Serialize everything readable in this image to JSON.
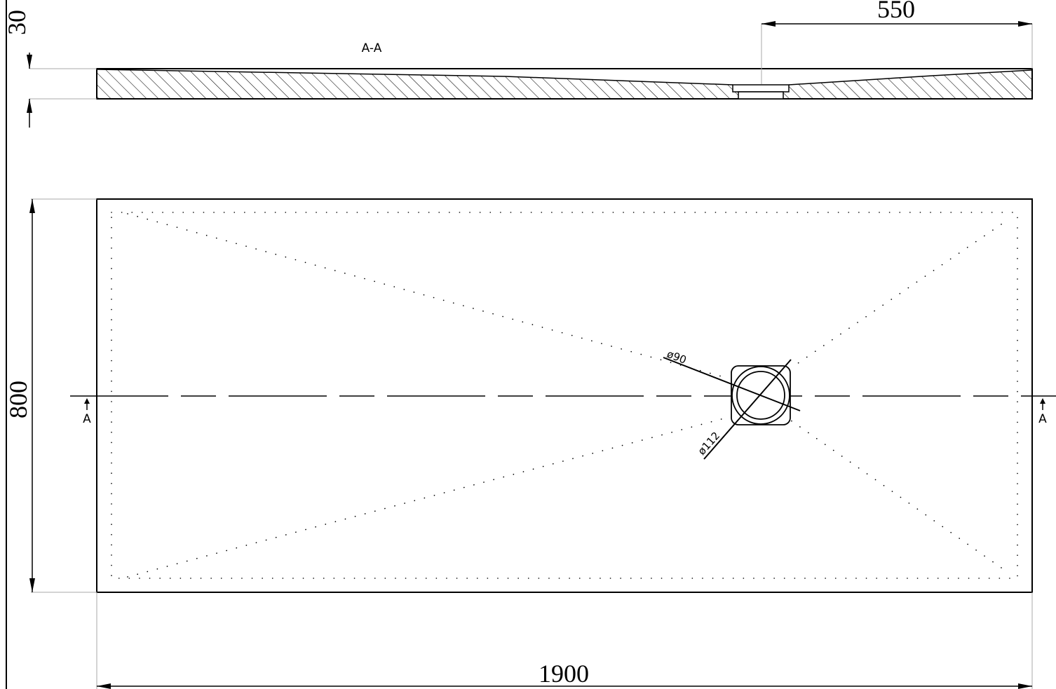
{
  "drawing": {
    "section_label": "A-A",
    "section_marker": "A",
    "dimensions": {
      "thickness": "30",
      "drain_offset": "550",
      "width": "800",
      "length": "1900"
    },
    "drain": {
      "inner_diameter": "ø90",
      "outer_diameter": "ø112"
    }
  }
}
